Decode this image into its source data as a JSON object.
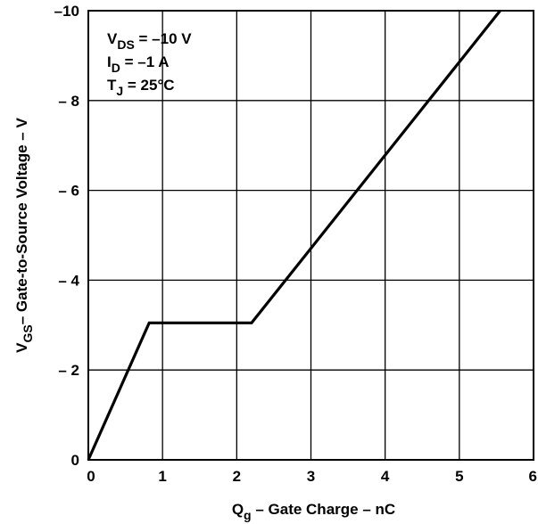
{
  "chart_data": {
    "type": "line",
    "xlabel": {
      "main": "Q",
      "sub": "g",
      "rest": " – Gate Charge – nC"
    },
    "ylabel": {
      "main": "V",
      "sub": "GS",
      "rest": "– Gate-to-Source Voltage – V"
    },
    "x_ticks": [
      {
        "value": 0,
        "label": "0"
      },
      {
        "value": 1,
        "label": "1"
      },
      {
        "value": 2,
        "label": "2"
      },
      {
        "value": 3,
        "label": "3"
      },
      {
        "value": 4,
        "label": "4"
      },
      {
        "value": 5,
        "label": "5"
      },
      {
        "value": 6,
        "label": "6"
      }
    ],
    "y_ticks": [
      {
        "value": 0,
        "label": "0"
      },
      {
        "value": -2,
        "label": "– 2"
      },
      {
        "value": -4,
        "label": "– 4"
      },
      {
        "value": -6,
        "label": "– 6"
      },
      {
        "value": -8,
        "label": "– 8"
      },
      {
        "value": -10,
        "label": "–10"
      }
    ],
    "xlim": [
      0,
      6
    ],
    "ylim": [
      0,
      -10
    ],
    "grid": true,
    "conditions": [
      {
        "main": "V",
        "sub": "DS",
        "rest": " = –10 V"
      },
      {
        "main": "I",
        "sub": "D",
        "rest": " = –1 A"
      },
      {
        "main": "T",
        "sub": "J",
        "rest": " = 25°C"
      }
    ],
    "series": [
      {
        "points": [
          {
            "x": 0,
            "y": 0
          },
          {
            "x": 0.82,
            "y": -3.05
          },
          {
            "x": 2.2,
            "y": -3.05
          },
          {
            "x": 5.55,
            "y": -10
          }
        ]
      }
    ]
  }
}
